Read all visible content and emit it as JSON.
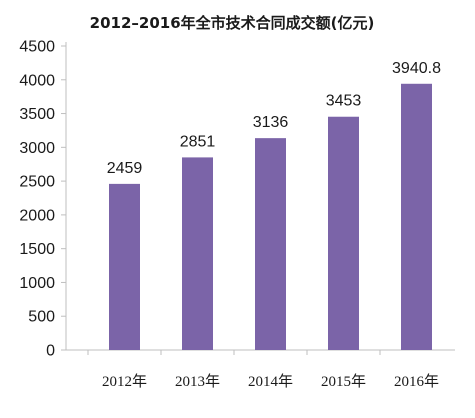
{
  "chart_data": {
    "type": "bar",
    "title": "2012–2016年全市技术合同成交额(亿元)",
    "categories": [
      "2012年",
      "2013年",
      "2014年",
      "2015年",
      "2016年"
    ],
    "values": [
      2459,
      2851,
      3136,
      3453,
      3940.8
    ],
    "value_labels": [
      "2459",
      "2851",
      "3136",
      "3453",
      "3940.8"
    ],
    "yticks": [
      "0",
      "500",
      "1000",
      "1500",
      "2000",
      "2500",
      "3000",
      "3500",
      "4000",
      "4500"
    ],
    "ylim": [
      0,
      4500
    ],
    "grid": false,
    "legend": "none",
    "bar_color": "#7b64a8",
    "axis_color": "#bfbfbf"
  }
}
